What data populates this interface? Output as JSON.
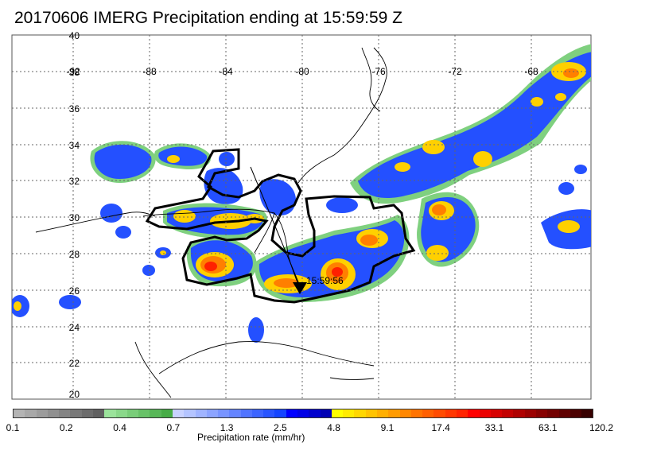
{
  "title": "20170606 IMERG Precipitation ending at 15:59:59 Z",
  "map": {
    "lat_labels": [
      "40",
      "38",
      "36",
      "34",
      "32",
      "30",
      "28",
      "26",
      "24",
      "22",
      "20"
    ],
    "lon_labels": [
      "-92",
      "-88",
      "-84",
      "-80",
      "-76",
      "-72",
      "-68"
    ],
    "track_label": "15:59:56",
    "marker_icon": "triangle-down-icon"
  },
  "colorbar": {
    "title": "Precipitation rate (mm/hr)",
    "labels": [
      "0.1",
      "0.2",
      "0.4",
      "0.7",
      "1.3",
      "2.5",
      "4.8",
      "9.1",
      "17.4",
      "33.1",
      "63.1",
      "120.2"
    ],
    "colors": [
      "#b4b4b4",
      "#a8a8a8",
      "#9c9c9c",
      "#909090",
      "#848484",
      "#787878",
      "#6c6c6c",
      "#606060",
      "#9be39b",
      "#8ad88a",
      "#79cd79",
      "#68c268",
      "#57b757",
      "#46ac46",
      "#c8d2ff",
      "#b4c4ff",
      "#a0b4ff",
      "#8ca4ff",
      "#7894ff",
      "#6484ff",
      "#5074ff",
      "#3c64ff",
      "#2854ff",
      "#1444ff",
      "#0000ff",
      "#0000e6",
      "#0000cd",
      "#0000b4",
      "#ffff00",
      "#ffeb00",
      "#ffd700",
      "#ffc300",
      "#ffaf00",
      "#ff9b00",
      "#ff8700",
      "#ff7300",
      "#ff5f00",
      "#ff4b00",
      "#ff3700",
      "#ff2300",
      "#ff0000",
      "#eb0000",
      "#d70000",
      "#c30000",
      "#af0000",
      "#9b0000",
      "#870000",
      "#730000",
      "#5f0000",
      "#4b0000",
      "#370000"
    ]
  }
}
